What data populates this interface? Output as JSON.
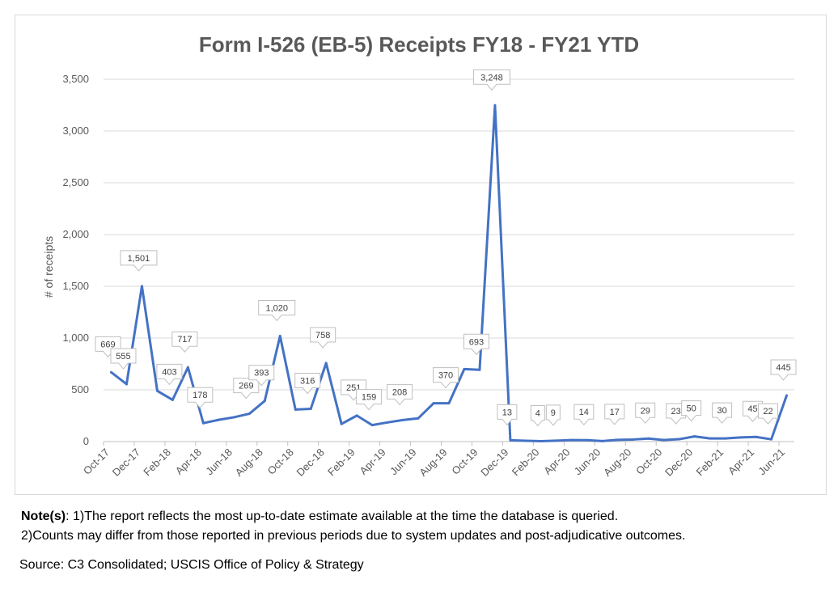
{
  "chart_data": {
    "type": "line",
    "title": "Form I-526 (EB-5) Receipts FY18 - FY21 YTD",
    "xlabel": "",
    "ylabel": "# of receipts",
    "ylim": [
      0,
      3500
    ],
    "yticks": [
      "0",
      "500",
      "1,000",
      "1,500",
      "2,000",
      "2,500",
      "3,000",
      "3,500"
    ],
    "grid": true,
    "color": "#4472c4",
    "x": [
      "Oct-17",
      "Nov-17",
      "Dec-17",
      "Jan-18",
      "Feb-18",
      "Mar-18",
      "Apr-18",
      "May-18",
      "Jun-18",
      "Jul-18",
      "Aug-18",
      "Sep-18",
      "Oct-18",
      "Nov-18",
      "Dec-18",
      "Jan-19",
      "Feb-19",
      "Mar-19",
      "Apr-19",
      "May-19",
      "Jun-19",
      "Jul-19",
      "Aug-19",
      "Sep-19",
      "Oct-19",
      "Nov-19",
      "Dec-19",
      "Jan-20",
      "Feb-20",
      "Mar-20",
      "Apr-20",
      "May-20",
      "Jun-20",
      "Jul-20",
      "Aug-20",
      "Sep-20",
      "Oct-20",
      "Nov-20",
      "Dec-20",
      "Jan-21",
      "Feb-21",
      "Mar-21",
      "Apr-21",
      "May-21",
      "Jun-21"
    ],
    "xtick_labels": [
      "Oct-17",
      "Dec-17",
      "Feb-18",
      "Apr-18",
      "Jun-18",
      "Aug-18",
      "Oct-18",
      "Dec-18",
      "Feb-19",
      "Apr-19",
      "Jun-19",
      "Aug-19",
      "Oct-19",
      "Dec-19",
      "Feb-20",
      "Apr-20",
      "Jun-20",
      "Aug-20",
      "Oct-20",
      "Dec-20",
      "Feb-21",
      "Apr-21",
      "Jun-21"
    ],
    "values": [
      669,
      555,
      1501,
      490,
      403,
      717,
      178,
      210,
      235,
      269,
      393,
      1020,
      310,
      316,
      758,
      170,
      251,
      159,
      185,
      208,
      225,
      370,
      370,
      700,
      693,
      3248,
      13,
      8,
      4,
      9,
      15,
      14,
      5,
      17,
      20,
      29,
      15,
      23,
      50,
      30,
      30,
      40,
      45,
      22,
      445
    ],
    "data_labels": [
      "669",
      "555",
      "1,501",
      null,
      "403",
      "717",
      "178",
      null,
      null,
      "269",
      "393",
      "1,020",
      null,
      "316",
      "758",
      null,
      "251",
      "159",
      null,
      "208",
      null,
      null,
      "370",
      null,
      "693",
      "3,248",
      "13",
      null,
      "4",
      "9",
      null,
      "14",
      null,
      "17",
      null,
      "29",
      null,
      "23",
      "50",
      null,
      "30",
      null,
      "45",
      "22",
      "445"
    ]
  },
  "notes": {
    "label": "Note(s)",
    "line1": ": 1)The report reflects the most up-to-date estimate available at the time the database is queried.",
    "line2": "2)Counts may differ from those reported in previous periods due to system updates and post-adjudicative outcomes."
  },
  "source": "Source: C3 Consolidated; USCIS Office of Policy & Strategy"
}
